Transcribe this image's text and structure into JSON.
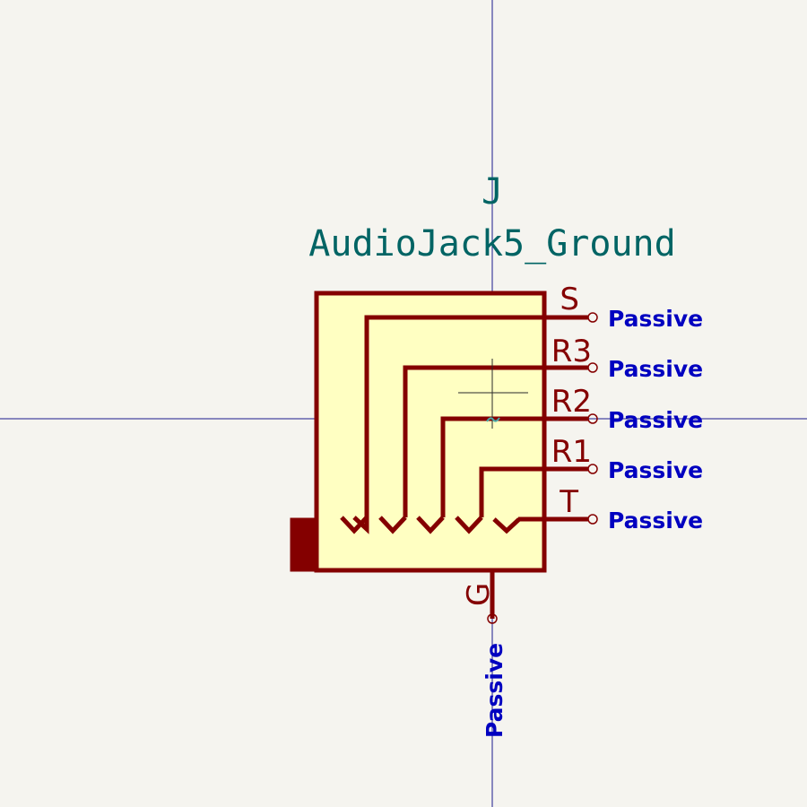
{
  "symbol": {
    "reference": "J",
    "value": "AudioJack5_Ground"
  },
  "pins": [
    {
      "name": "S",
      "type": "Passive"
    },
    {
      "name": "R3",
      "type": "Passive"
    },
    {
      "name": "R2",
      "type": "Passive"
    },
    {
      "name": "R1",
      "type": "Passive"
    },
    {
      "name": "T",
      "type": "Passive"
    }
  ],
  "ground_pin": {
    "name": "G",
    "type": "Passive"
  },
  "colors": {
    "background": "#f5f4ef",
    "body_fill": "#ffffc2",
    "body_stroke": "#840000",
    "crosshair": "#1a1a8c",
    "reference_text": "#006464",
    "pin_type_text": "#0000c0"
  }
}
